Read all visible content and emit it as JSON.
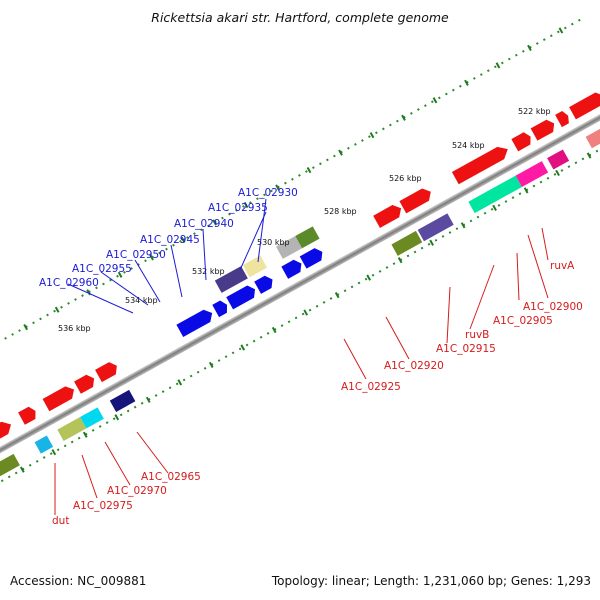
{
  "title": "Rickettsia akari str. Hartford, complete genome",
  "footer": {
    "accession": "Accession: NC_009881",
    "summary": "Topology: linear; Length: 1,231,060 bp; Genes: 1,293"
  },
  "ticks": [
    "522 kbp",
    "524 kbp",
    "526 kbp",
    "528 kbp",
    "530 kbp",
    "532 kbp",
    "534 kbp",
    "536 kbp"
  ],
  "gene_labels": [
    {
      "id": "A1C_02930",
      "strand": "minus"
    },
    {
      "id": "A1C_02935",
      "strand": "minus"
    },
    {
      "id": "A1C_02940",
      "strand": "minus"
    },
    {
      "id": "A1C_02945",
      "strand": "minus"
    },
    {
      "id": "A1C_02950",
      "strand": "minus"
    },
    {
      "id": "A1C_02955",
      "strand": "minus"
    },
    {
      "id": "A1C_02960",
      "strand": "minus"
    },
    {
      "id": "ruvA",
      "strand": "plus"
    },
    {
      "id": "A1C_02900",
      "strand": "plus"
    },
    {
      "id": "A1C_02905",
      "strand": "plus"
    },
    {
      "id": "ruvB",
      "strand": "plus"
    },
    {
      "id": "A1C_02915",
      "strand": "plus"
    },
    {
      "id": "A1C_02920",
      "strand": "plus"
    },
    {
      "id": "A1C_02925",
      "strand": "plus"
    },
    {
      "id": "A1C_02965",
      "strand": "plus"
    },
    {
      "id": "A1C_02970",
      "strand": "plus"
    },
    {
      "id": "A1C_02975",
      "strand": "plus"
    },
    {
      "id": "dut",
      "strand": "plus"
    }
  ],
  "colors": {
    "backbone": "#8a8a8a",
    "tick_dots": "#2a8a2a",
    "minus_label": "#1b1bd6",
    "plus_label": "#d61b1b"
  }
}
